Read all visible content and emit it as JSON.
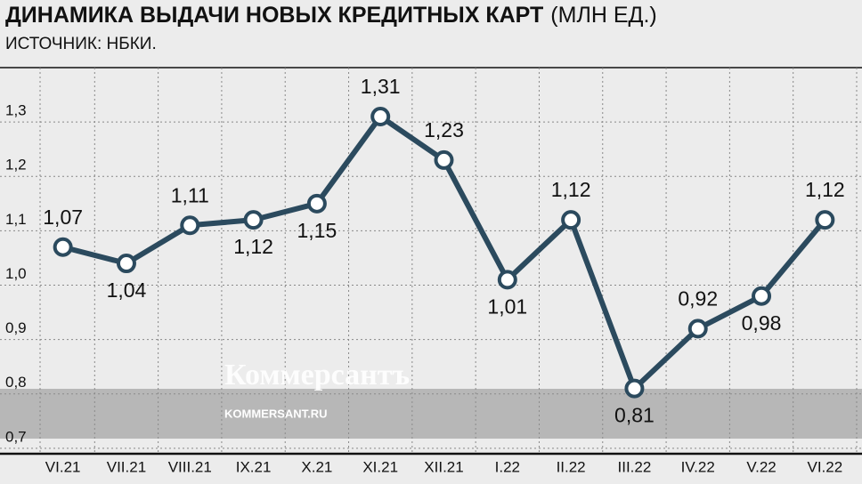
{
  "chart_data": {
    "type": "line",
    "title": "ДИНАМИКА ВЫДАЧИ НОВЫХ КРЕДИТНЫХ КАРТ",
    "unit": "(МЛН ЕД.)",
    "subtitle": "ИСТОЧНИК: НБКИ.",
    "categories": [
      "VI.21",
      "VII.21",
      "VIII.21",
      "IX.21",
      "X.21",
      "XI.21",
      "XII.21",
      "I.22",
      "II.22",
      "III.22",
      "IV.22",
      "V.22",
      "VI.22"
    ],
    "values": [
      1.07,
      1.04,
      1.11,
      1.12,
      1.15,
      1.31,
      1.23,
      1.01,
      1.12,
      0.81,
      0.92,
      0.98,
      1.12
    ],
    "value_labels": [
      "1,07",
      "1,04",
      "1,11",
      "1,12",
      "1,15",
      "1,31",
      "1,23",
      "1,01",
      "1,12",
      "0,81",
      "0,92",
      "0,98",
      "1,12"
    ],
    "color": "#2b4a5e",
    "ylim": [
      0.69,
      1.4
    ],
    "yticks": [
      {
        "value": 0.7,
        "label": "0,7"
      },
      {
        "value": 0.8,
        "label": "0,8"
      },
      {
        "value": 0.9,
        "label": "0,9"
      },
      {
        "value": 1.0,
        "label": "1,0"
      },
      {
        "value": 1.1,
        "label": "1,1"
      },
      {
        "value": 1.2,
        "label": "1,2"
      },
      {
        "value": 1.3,
        "label": "1,3"
      }
    ],
    "grid": true,
    "watermark": {
      "brand": "Коммерсантъ",
      "site": "KOMMERSANT.RU"
    }
  }
}
